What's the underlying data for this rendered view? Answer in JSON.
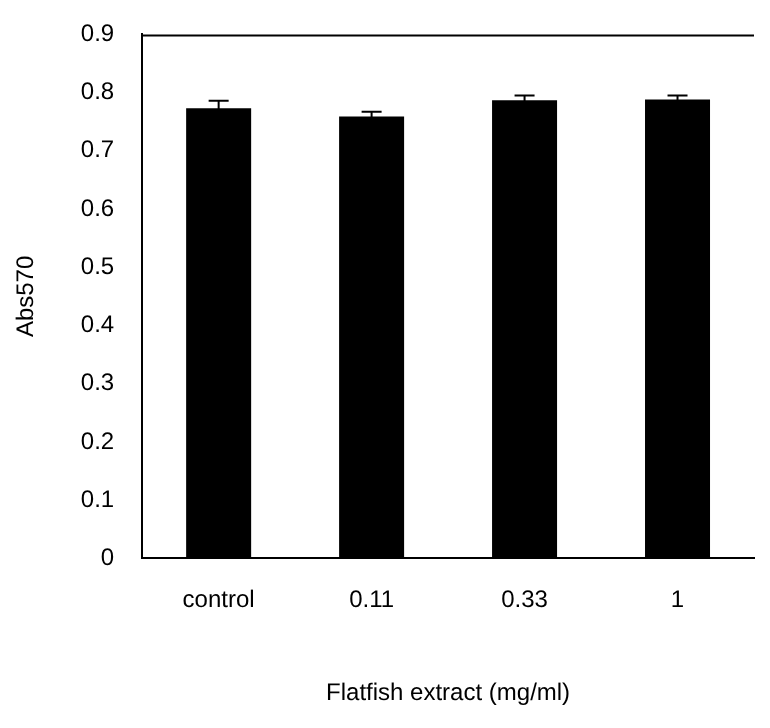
{
  "chart_data": {
    "type": "bar",
    "xlabel": "Flatfish extract (mg/ml)",
    "ylabel": "Abs570",
    "categories": [
      "control",
      "0.11",
      "0.33",
      "1"
    ],
    "values": [
      0.773,
      0.759,
      0.787,
      0.788
    ],
    "errors": [
      0.013,
      0.008,
      0.008,
      0.007
    ],
    "color": "#000000",
    "ylim": [
      0,
      0.9
    ],
    "yticks": [
      0,
      0.1,
      0.2,
      0.3,
      0.4,
      0.5,
      0.6,
      0.7,
      0.8,
      0.9
    ],
    "grid": false,
    "legend": false
  }
}
